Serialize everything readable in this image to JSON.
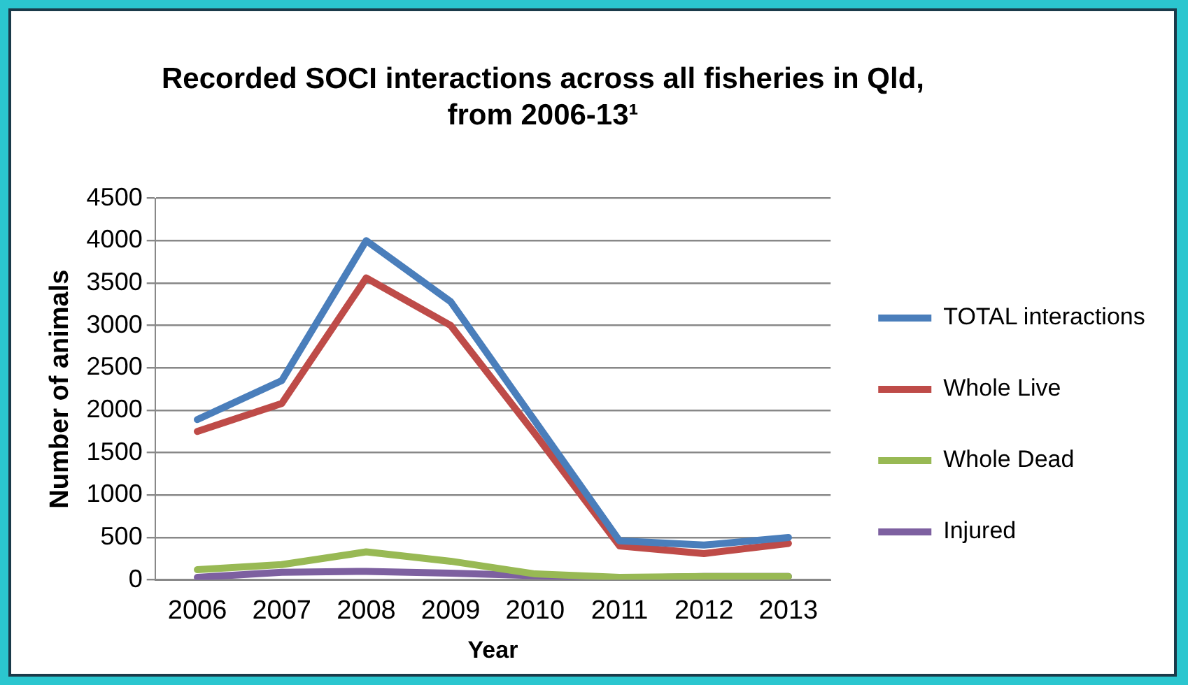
{
  "chart_data": {
    "type": "line",
    "title": "Recorded SOCI interactions across all fisheries in Qld, from 2006-13¹",
    "xlabel": "Year",
    "ylabel": "Number of animals",
    "categories": [
      "2006",
      "2007",
      "2008",
      "2009",
      "2010",
      "2011",
      "2012",
      "2013"
    ],
    "series": [
      {
        "name": "TOTAL interactions",
        "color": "#4a7ebb",
        "values": [
          1890,
          2350,
          4000,
          3280,
          1870,
          460,
          410,
          500
        ]
      },
      {
        "name": "Whole Live",
        "color": "#be4b48",
        "values": [
          1750,
          2080,
          3560,
          3000,
          1720,
          400,
          310,
          430
        ]
      },
      {
        "name": "Whole Dead",
        "color": "#98b954",
        "values": [
          120,
          180,
          330,
          220,
          70,
          30,
          40,
          40
        ]
      },
      {
        "name": "Injured",
        "color": "#7d60a0",
        "values": [
          30,
          90,
          100,
          80,
          50,
          20,
          40,
          40
        ]
      }
    ],
    "ylim": [
      0,
      4500
    ],
    "yticks": [
      0,
      500,
      1000,
      1500,
      2000,
      2500,
      3000,
      3500,
      4000,
      4500
    ],
    "grid": "y",
    "legend": "right",
    "marker": "none",
    "line_style": "solid"
  }
}
